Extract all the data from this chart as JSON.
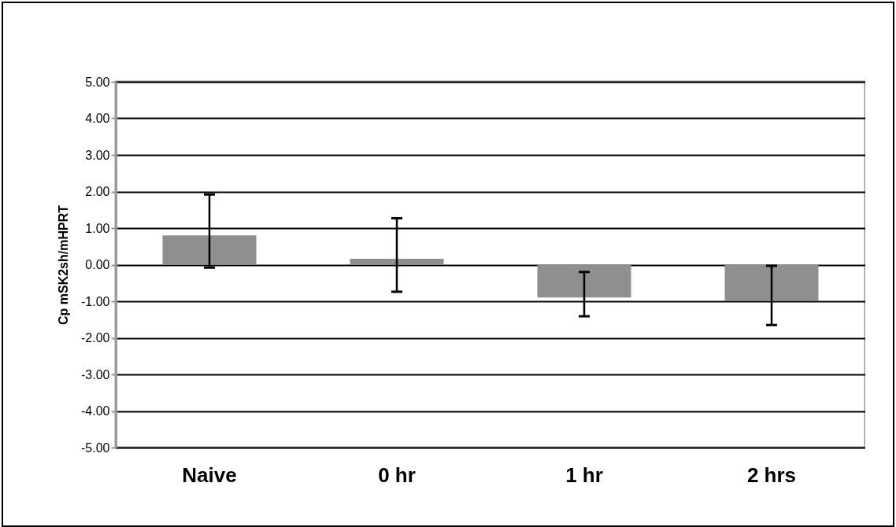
{
  "chart_data": {
    "type": "bar",
    "ylabel": "Cp mSK2sh/mHPRT",
    "categories": [
      "Naive",
      "0 hr",
      "1 hr",
      "2 hrs"
    ],
    "series": [
      {
        "color": "#8f8f8f",
        "values": [
          0.8,
          0.16,
          -0.9,
          -0.98
        ],
        "errors": [
          [
            -0.08,
            1.92
          ],
          [
            -0.74,
            1.27
          ],
          [
            -1.41,
            -0.2
          ],
          [
            -1.65,
            -0.03
          ]
        ]
      }
    ],
    "ylim": [
      -5,
      5
    ],
    "yticks": [
      {
        "value": -5,
        "label": "-5.00"
      },
      {
        "value": -4,
        "label": "-4.00"
      },
      {
        "value": -3,
        "label": "-3.00"
      },
      {
        "value": -2,
        "label": "-2.00"
      },
      {
        "value": -1,
        "label": "-1.00"
      },
      {
        "value": 0,
        "label": "0.00"
      },
      {
        "value": 1,
        "label": "1.00"
      },
      {
        "value": 2,
        "label": "2.00"
      },
      {
        "value": 3,
        "label": "3.00"
      },
      {
        "value": 4,
        "label": "4.00"
      },
      {
        "value": 5,
        "label": "5.00"
      }
    ],
    "grid": "y",
    "legend": false
  }
}
